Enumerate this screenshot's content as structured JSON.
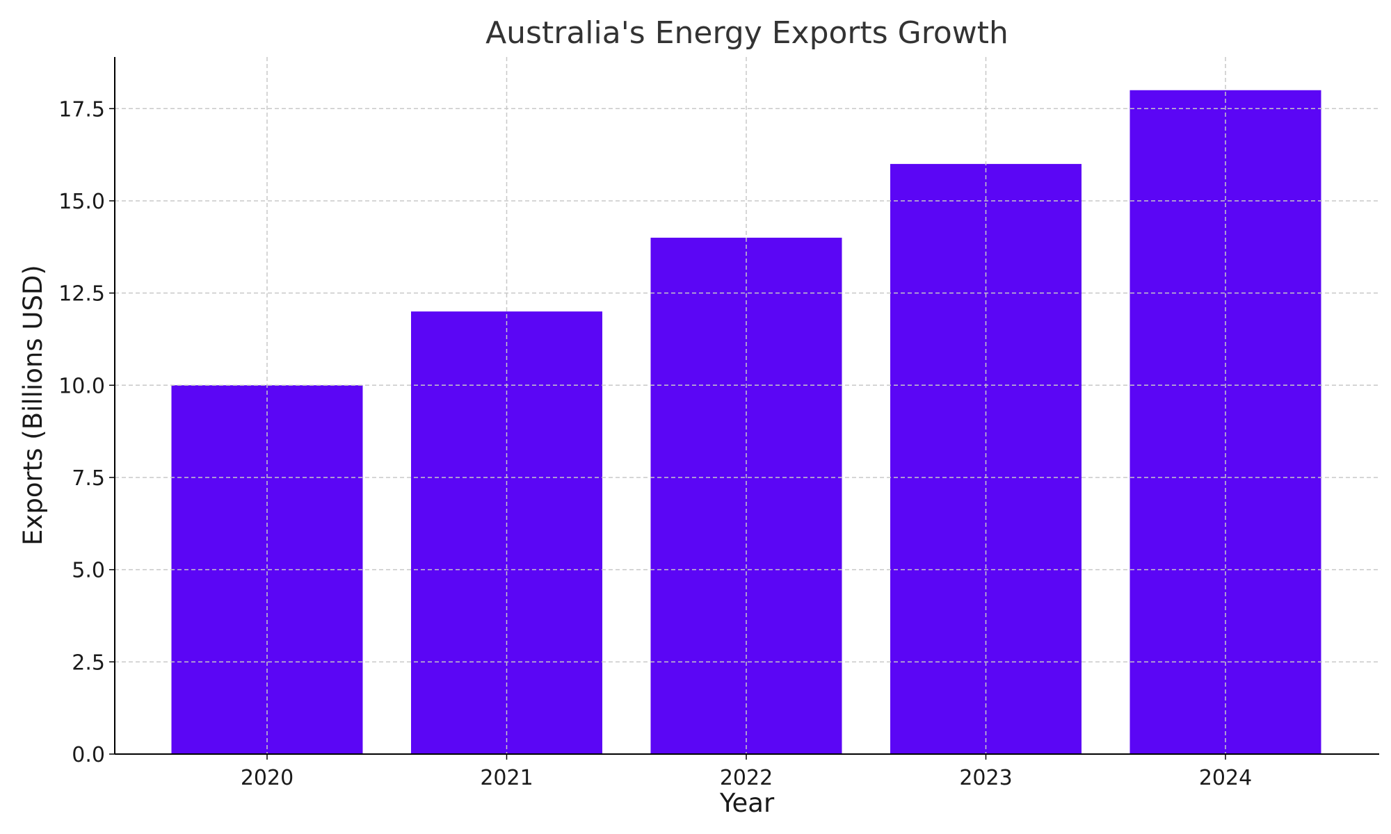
{
  "chart_data": {
    "type": "bar",
    "title": "Australia's Energy Exports Growth",
    "xlabel": "Year",
    "ylabel": "Exports (Billions USD)",
    "categories": [
      "2020",
      "2021",
      "2022",
      "2023",
      "2024"
    ],
    "values": [
      10,
      12,
      14,
      16,
      18
    ],
    "ylim": [
      0,
      18.9
    ],
    "yticks": [
      0.0,
      2.5,
      5.0,
      7.5,
      10.0,
      12.5,
      15.0,
      17.5
    ],
    "ytick_labels": [
      "0.0",
      "2.5",
      "5.0",
      "7.5",
      "10.0",
      "12.5",
      "15.0",
      "17.5"
    ],
    "bar_color": "#5b06f5",
    "grid": true,
    "legend": "none"
  }
}
